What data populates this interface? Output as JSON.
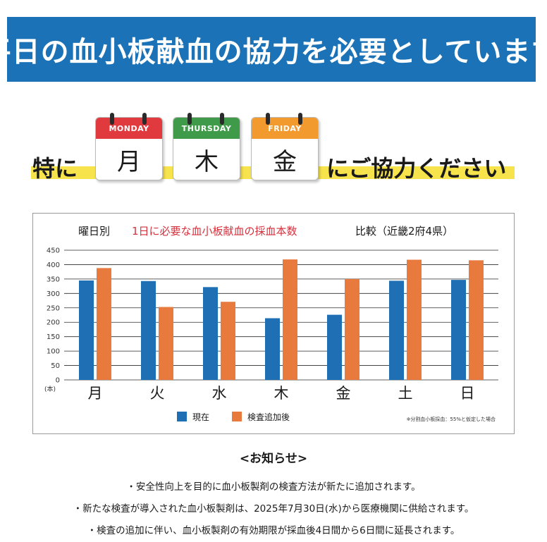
{
  "banner": {
    "title": "平日の血小板献血の協力を必要としています"
  },
  "appeal": {
    "prefix": "特に",
    "suffix": "にご協力ください",
    "days": [
      {
        "weekday_en": "MONDAY",
        "day_jp": "月",
        "color": "#e03a3e"
      },
      {
        "weekday_en": "THURSDAY",
        "day_jp": "木",
        "color": "#3f9b49"
      },
      {
        "weekday_en": "FRIDAY",
        "day_jp": "金",
        "color": "#f29a2e"
      }
    ]
  },
  "chart_data": {
    "type": "bar",
    "title_prefix": "曜日別",
    "title_highlight": "1日に必要な血小板献血の採血本数",
    "title_suffix": "比較（近畿2府4県）",
    "categories": [
      "月",
      "火",
      "水",
      "木",
      "金",
      "土",
      "日"
    ],
    "series": [
      {
        "name": "現在",
        "color": "#1f6fb5",
        "values": [
          345,
          343,
          322,
          214,
          226,
          344,
          347
        ]
      },
      {
        "name": "検査追加後",
        "color": "#e87a3d",
        "values": [
          388,
          253,
          271,
          418,
          350,
          417,
          415
        ]
      }
    ],
    "ylim": [
      0,
      450
    ],
    "yticks": [
      "0",
      "50",
      "100",
      "150",
      "200",
      "250",
      "300",
      "350",
      "400",
      "450"
    ],
    "unit_label": "(本)",
    "footnote": "※分割血小板採血：55%と仮定した場合",
    "grid": true,
    "legend_position": "bottom-center",
    "title_highlight_color": "#d6303c"
  },
  "notice": {
    "heading": "<お知らせ>",
    "lines": [
      "・安全性向上を目的に血小板製剤の検査方法が新たに追加されます。",
      "・新たな検査が導入された血小板製剤は、2025年7月30日(水)から医療機関に供給されます。",
      "・検査の追加に伴い、血小板製剤の有効期限が採血後4日間から6日間に延長されます。"
    ]
  }
}
